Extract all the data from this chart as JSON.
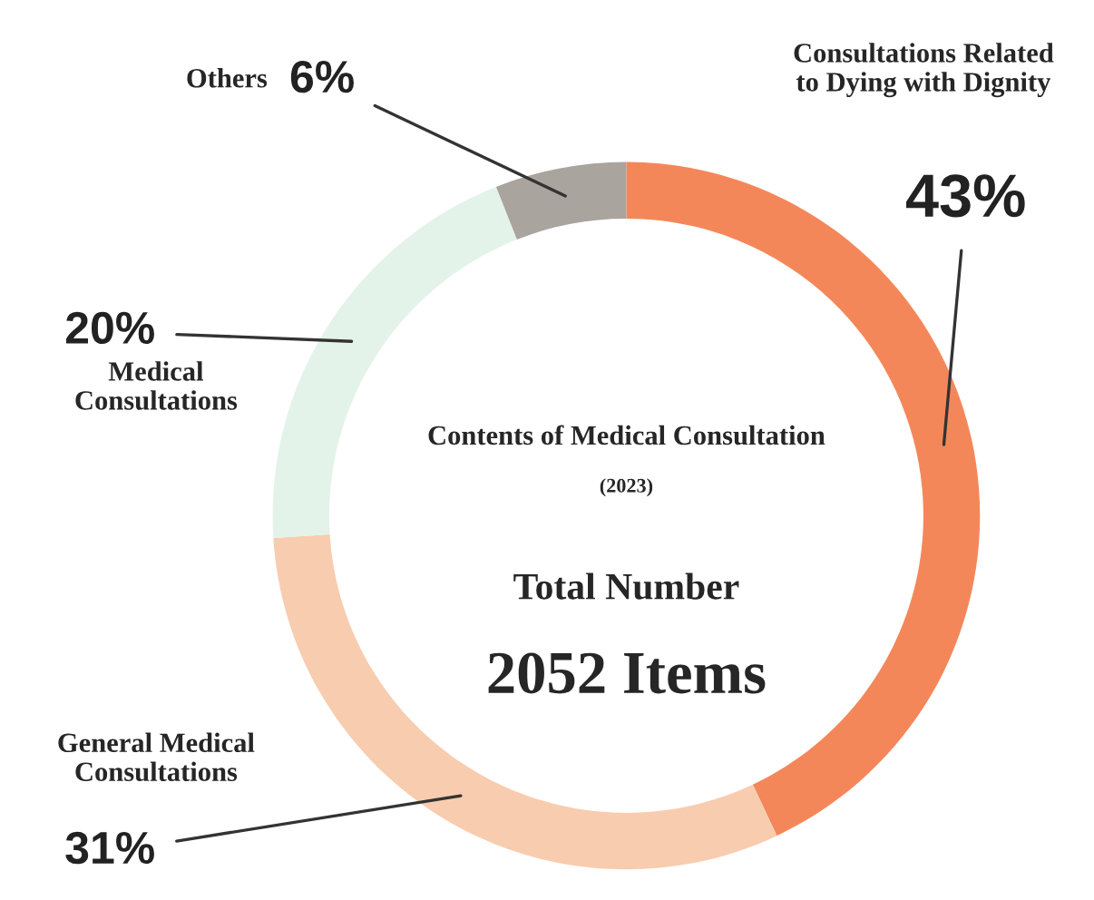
{
  "chart_data": {
    "type": "donut",
    "title": "Contents of Medical Consultation",
    "subtitle": "(2023)",
    "categories": [
      "Consultations Related\nto Dying with Dignity",
      "General Medical\nConsultations",
      "Medical\nConsultations",
      "Others"
    ],
    "values": [
      43,
      31,
      20,
      6
    ],
    "colors": [
      "#f4875a",
      "#f8ccaf",
      "#e4f3ea",
      "#aaa49e"
    ],
    "value_labels": [
      "43%",
      "31%",
      "20%",
      "6%"
    ],
    "annotations": [
      "Total Number",
      "2052 Items"
    ],
    "legend": false
  }
}
